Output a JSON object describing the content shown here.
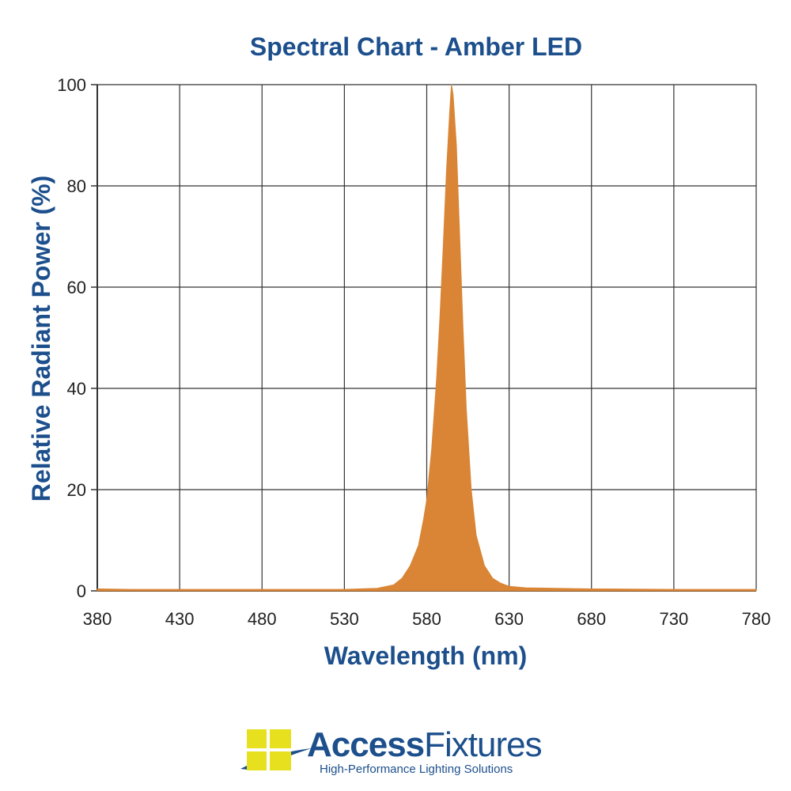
{
  "chart_data": {
    "type": "area",
    "title": "Spectral Chart - Amber LED",
    "xlabel": "Wavelength (nm)",
    "ylabel": "Relative Radiant Power (%)",
    "xlim": [
      380,
      780
    ],
    "ylim": [
      0,
      100
    ],
    "xticks": [
      380,
      430,
      480,
      530,
      580,
      630,
      680,
      730,
      780
    ],
    "yticks": [
      0,
      20,
      40,
      60,
      80,
      100
    ],
    "grid": true,
    "fill_color": "#d98535",
    "series": [
      {
        "x": [
          380,
          400,
          430,
          480,
          530,
          550,
          560,
          565,
          570,
          575,
          578,
          580,
          583,
          586,
          588,
          590,
          592,
          594,
          595,
          596,
          598,
          600,
          602,
          604,
          607,
          610,
          615,
          620,
          625,
          630,
          640,
          680,
          730,
          780
        ],
        "values": [
          0.4,
          0.3,
          0.3,
          0.3,
          0.3,
          0.5,
          1.2,
          2.5,
          5,
          9,
          14,
          18,
          28,
          42,
          54,
          68,
          83,
          95,
          100,
          98,
          88,
          70,
          52,
          36,
          20,
          11,
          5,
          2.5,
          1.5,
          0.9,
          0.6,
          0.4,
          0.3,
          0.3
        ]
      }
    ]
  },
  "logo": {
    "name_bold": "Access",
    "name_light": "Fixtures",
    "tagline": "High-Performance Lighting Solutions"
  }
}
